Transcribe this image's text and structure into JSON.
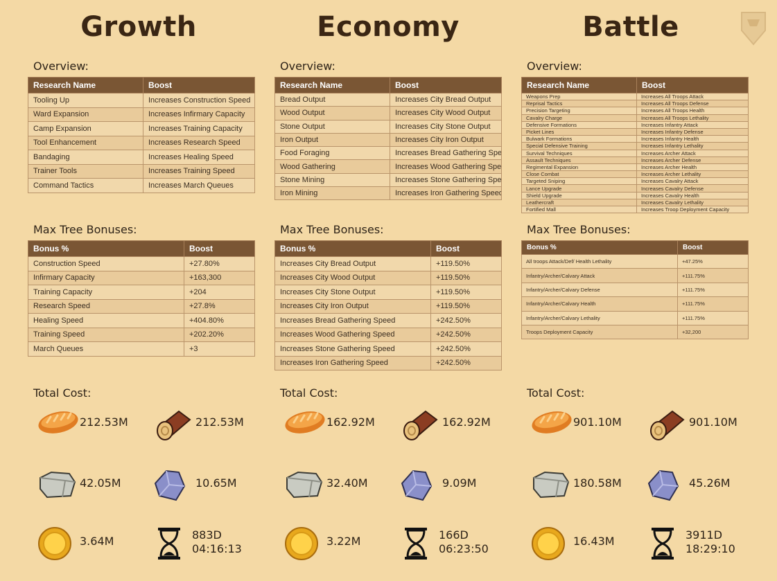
{
  "columns": [
    {
      "title": "Growth",
      "overview_label": "Overview:",
      "overview": {
        "headers": [
          "Research Name",
          "Boost"
        ],
        "rows": [
          [
            "Tooling Up",
            "Increases Construction Speed"
          ],
          [
            "Ward Expansion",
            "Increases Infirmary Capacity"
          ],
          [
            "Camp Expansion",
            "Increases Training Capacity"
          ],
          [
            "Tool Enhancement",
            "Increases Research Speed"
          ],
          [
            "Bandaging",
            "Increases Healing Speed"
          ],
          [
            "Trainer Tools",
            "Increases Training Speed"
          ],
          [
            "Command Tactics",
            "Increases March Queues"
          ]
        ]
      },
      "bonus_label": "Max Tree Bonuses:",
      "bonuses": {
        "headers": [
          "Bonus %",
          "Boost"
        ],
        "rows": [
          [
            "Construction Speed",
            "+27.80%"
          ],
          [
            "Infirmary Capacity",
            "+163,300"
          ],
          [
            "Training Capacity",
            "+204"
          ],
          [
            "Research Speed",
            "+27.8%"
          ],
          [
            "Healing Speed",
            "+404.80%"
          ],
          [
            "Training Speed",
            "+202.20%"
          ],
          [
            "March Queues",
            "+3"
          ]
        ]
      },
      "cost_label": "Total Cost:",
      "costs": {
        "bread": "212.53M",
        "wood": "212.53M",
        "stone": "42.05M",
        "iron": "10.65M",
        "gold": "3.64M",
        "time": [
          "883D",
          "04:16:13"
        ]
      }
    },
    {
      "title": "Economy",
      "overview_label": "Overview:",
      "overview": {
        "headers": [
          "Research Name",
          "Boost"
        ],
        "rows": [
          [
            "Bread Output",
            "Increases City Bread Output"
          ],
          [
            "Wood Output",
            "Increases City Wood Output"
          ],
          [
            "Stone Output",
            "Increases City Stone Output"
          ],
          [
            "Iron Output",
            "Increases City Iron Output"
          ],
          [
            "Food Foraging",
            "Increases Bread Gathering Speed"
          ],
          [
            "Wood Gathering",
            "Increases Wood Gathering Speed"
          ],
          [
            "Stone Mining",
            "Increases Stone Gathering Speed"
          ],
          [
            "Iron Mining",
            "Increases Iron Gathering Speed"
          ]
        ]
      },
      "bonus_label": "Max Tree Bonuses:",
      "bonuses": {
        "headers": [
          "Bonus %",
          "Boost"
        ],
        "rows": [
          [
            "Increases City Bread Output",
            "+119.50%"
          ],
          [
            "Increases City Wood Output",
            "+119.50%"
          ],
          [
            "Increases City Stone Output",
            "+119.50%"
          ],
          [
            "Increases City Iron Output",
            "+119.50%"
          ],
          [
            "Increases Bread Gathering Speed",
            "+242.50%"
          ],
          [
            "Increases Wood Gathering Speed",
            "+242.50%"
          ],
          [
            "Increases Stone Gathering Speed",
            "+242.50%"
          ],
          [
            "Increases Iron Gathering Speed",
            "+242.50%"
          ]
        ]
      },
      "cost_label": "Total Cost:",
      "costs": {
        "bread": "162.92M",
        "wood": "162.92M",
        "stone": "32.40M",
        "iron": "9.09M",
        "gold": "3.22M",
        "time": [
          "166D",
          "06:23:50"
        ]
      }
    },
    {
      "title": "Battle",
      "overview_label": "Overview:",
      "overview": {
        "headers": [
          "Research Name",
          "Boost"
        ],
        "rows": [
          [
            "Weapons Prep",
            "Increases All Troops Attack"
          ],
          [
            "Reprisal Tactics",
            "Increases All Troops Defense"
          ],
          [
            "Precision Targeting",
            "Increases All Troops Health"
          ],
          [
            "Cavalry Charge",
            "Increases All Troops Lethality"
          ],
          [
            "Defensive Formations",
            "Increases Infantry Attack"
          ],
          [
            "Picket Lines",
            "Increases Infantry Defense"
          ],
          [
            "Bulwark Formations",
            "Increases Infantry Health"
          ],
          [
            "Special Defensive Training",
            "Increases Infantry Lethality"
          ],
          [
            "Survival Techniques",
            "Increases Archer Attack"
          ],
          [
            "Assault Techniques",
            "Increases Archer Defense"
          ],
          [
            "Regimental Expansion",
            "Increases Archer Health"
          ],
          [
            "Close Combat",
            "Increases Archer Lethality"
          ],
          [
            "Targeted Sniping",
            "Increases Cavalry Attack"
          ],
          [
            "Lance Upgrade",
            "Increases Cavalry Defense"
          ],
          [
            "Shield Upgrade",
            "Increases Cavalry Health"
          ],
          [
            "Leathercraft",
            "Increases Cavalry Lethality"
          ],
          [
            "Fortified Mall",
            "Increases Troop Deployment Capacity"
          ]
        ]
      },
      "bonus_label": "Max Tree Bonuses:",
      "bonuses": {
        "headers": [
          "Bonus %",
          "Boost"
        ],
        "rows": [
          [
            "All troops Attack/Def/ Health Lethality",
            "+47.25%"
          ],
          [
            "Infantry/Archer/Calvary Attack",
            "+111.75%"
          ],
          [
            "Infantry/Archer/Calvary Defense",
            "+111.75%"
          ],
          [
            "Infantry/Archer/Calvary Health",
            "+111.75%"
          ],
          [
            "Infantry/Archer/Calvary Lethality",
            "+111.75%"
          ],
          [
            "Troops Deployment Capacity",
            "+32,200"
          ]
        ]
      },
      "cost_label": "Total Cost:",
      "costs": {
        "bread": "901.10M",
        "wood": "901.10M",
        "stone": "180.58M",
        "iron": "45.26M",
        "gold": "16.43M",
        "time": [
          "3911D",
          "18:29:10"
        ]
      }
    }
  ]
}
